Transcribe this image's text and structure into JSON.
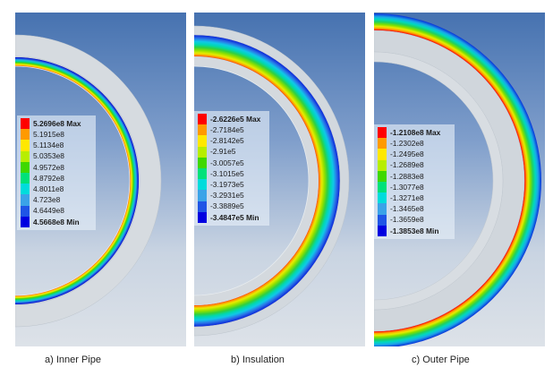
{
  "colormap": [
    "#ff0000",
    "#ff9a00",
    "#ffe800",
    "#b7ee00",
    "#3fd800",
    "#00e17a",
    "#00dcdc",
    "#3aa3e8",
    "#1f55e6",
    "#0000e0"
  ],
  "band_color": "#d2d8de",
  "panels": [
    {
      "caption": "a) Inner Pipe",
      "legend": {
        "max": "5.2696e8 Max",
        "levels": [
          "5.1915e8",
          "5.1134e8",
          "5.0353e8",
          "4.9572e8",
          "4.8792e8",
          "4.8011e8",
          "4.723e8",
          "4.6449e8"
        ],
        "min": "4.5668e8 Min"
      }
    },
    {
      "caption": "b) Insulation",
      "legend": {
        "max": "-2.6226e5 Max",
        "levels": [
          "-2.7184e5",
          "-2.8142e5",
          "-2.91e5",
          "-3.0057e5",
          "-3.1015e5",
          "-3.1973e5",
          "-3.2931e5",
          "-3.3889e5"
        ],
        "min": "-3.4847e5 Min"
      }
    },
    {
      "caption": "c) Outer Pipe",
      "legend": {
        "max": "-1.2108e8 Max",
        "levels": [
          "-1.2302e8",
          "-1.2495e8",
          "-1.2689e8",
          "-1.2883e8",
          "-1.3077e8",
          "-1.3271e8",
          "-1.3465e8",
          "-1.3659e8"
        ],
        "min": "-1.3853e8 Min"
      }
    }
  ]
}
